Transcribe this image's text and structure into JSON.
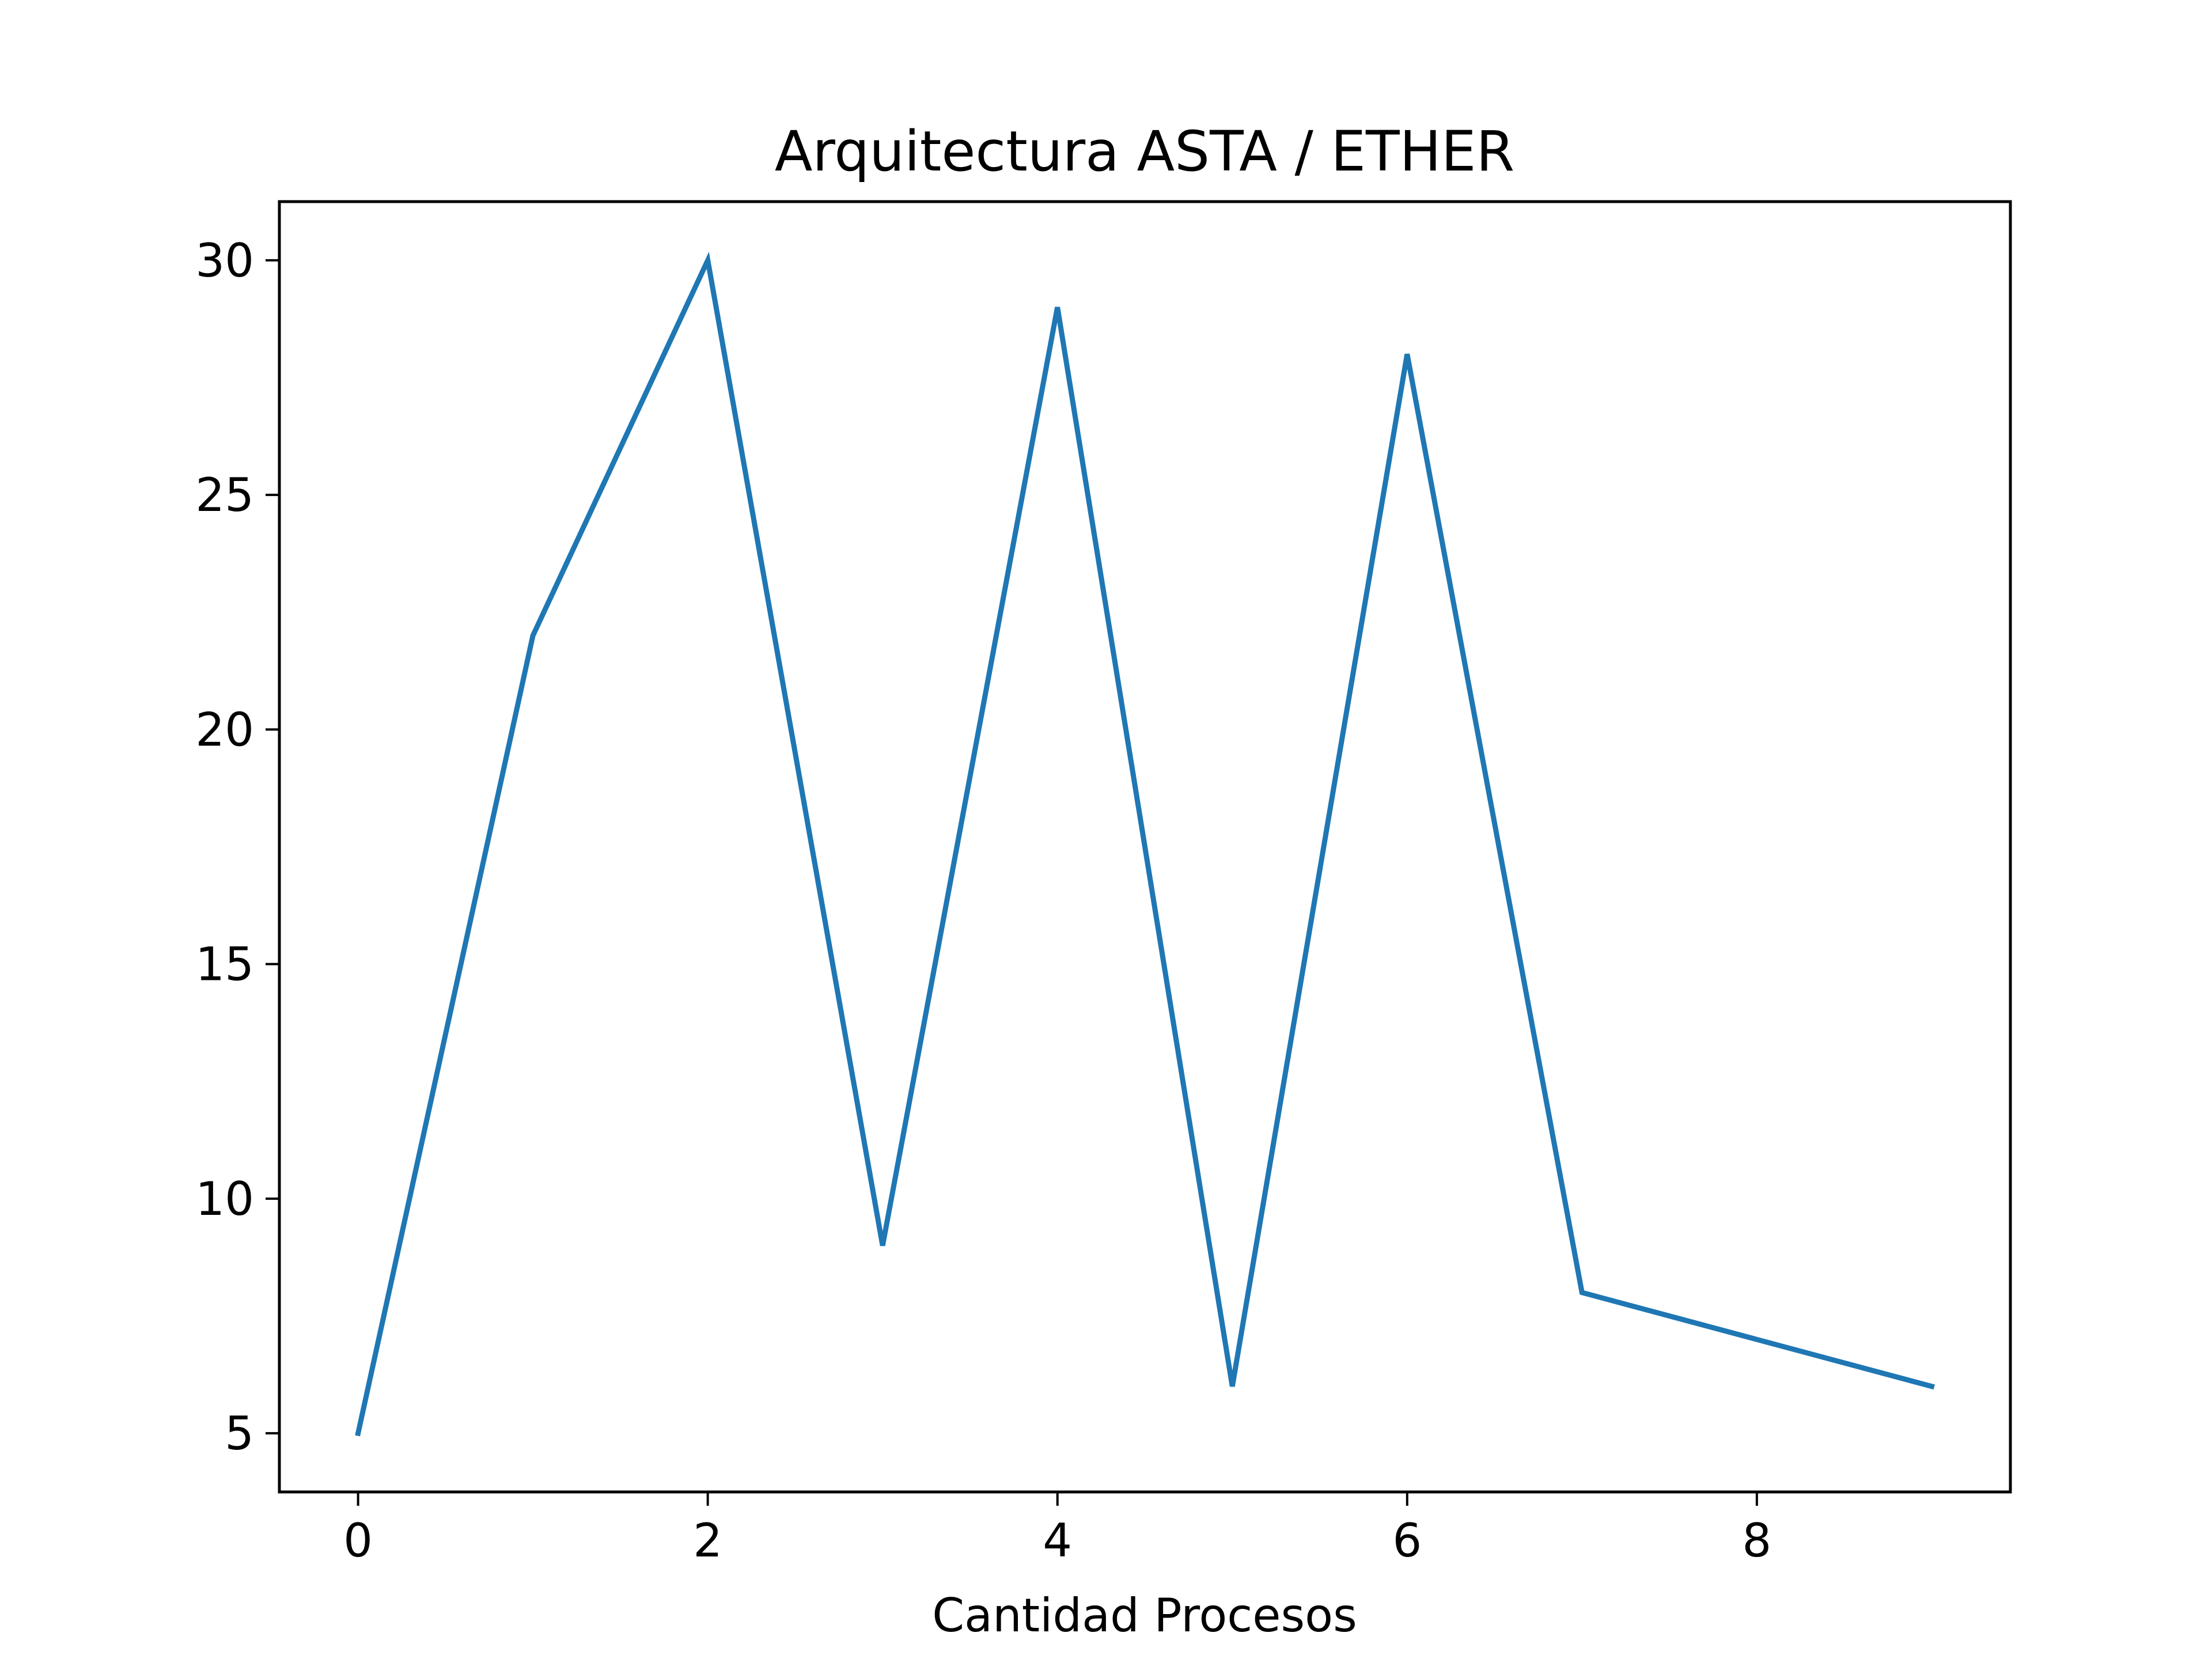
{
  "chart_data": {
    "type": "line",
    "title": "Arquitectura ASTA / ETHER",
    "xlabel": "Cantidad Procesos",
    "ylabel": "",
    "x": [
      0,
      1,
      2,
      3,
      4,
      5,
      6,
      7,
      8,
      9
    ],
    "series": [
      {
        "values": [
          5,
          22,
          30,
          9,
          29,
          6,
          28,
          8,
          7,
          6
        ],
        "color": "#1f77b4"
      }
    ],
    "xlim": [
      -0.45,
      9.45
    ],
    "ylim": [
      3.75,
      31.25
    ],
    "xticks": [
      0,
      2,
      4,
      6,
      8
    ],
    "xtick_labels": [
      "0",
      "2",
      "4",
      "6",
      "8"
    ],
    "yticks": [
      5,
      10,
      15,
      20,
      25,
      30
    ],
    "ytick_labels": [
      "5",
      "10",
      "15",
      "20",
      "25",
      "30"
    ],
    "grid": false,
    "legend": "none"
  }
}
